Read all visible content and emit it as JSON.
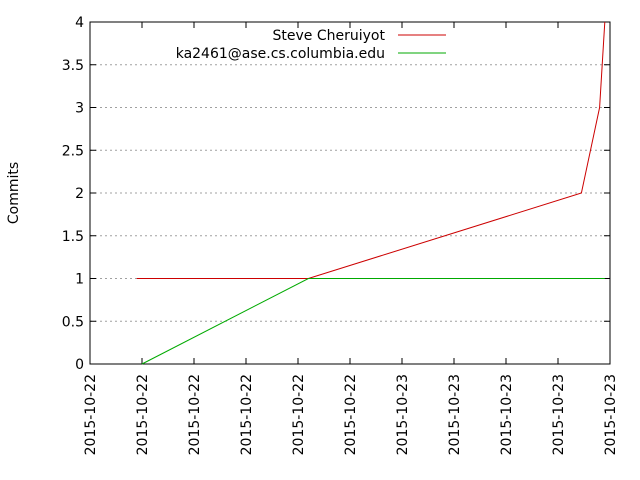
{
  "chart_data": {
    "type": "line",
    "title": "",
    "xlabel": "",
    "ylabel": "Commits",
    "ylim": [
      0,
      4
    ],
    "y_ticks": [
      {
        "value": 0,
        "label": "0"
      },
      {
        "value": 0.5,
        "label": "0.5"
      },
      {
        "value": 1,
        "label": "1"
      },
      {
        "value": 1.5,
        "label": "1.5"
      },
      {
        "value": 2,
        "label": "2"
      },
      {
        "value": 2.5,
        "label": "2.5"
      },
      {
        "value": 3,
        "label": "3"
      },
      {
        "value": 3.5,
        "label": "3.5"
      },
      {
        "value": 4,
        "label": "4"
      }
    ],
    "x_ticks": [
      "2015-10-22",
      "2015-10-22",
      "2015-10-22",
      "2015-10-22",
      "2015-10-22",
      "2015-10-22",
      "2015-10-23",
      "2015-10-23",
      "2015-10-23",
      "2015-10-23",
      "2015-10-23"
    ],
    "xlim": [
      0,
      10
    ],
    "grid": true,
    "legend_position": "top-right",
    "series": [
      {
        "name": "Steve Cheruiyot",
        "color": "#cc0000",
        "x": [
          0.9,
          4.2,
          9.45,
          9.8,
          9.9
        ],
        "y": [
          1,
          1,
          2,
          3,
          4
        ]
      },
      {
        "name": "ka2461@ase.cs.columbia.edu",
        "color": "#00aa00",
        "x": [
          1.0,
          4.2,
          9.9
        ],
        "y": [
          0,
          1,
          1
        ]
      }
    ]
  }
}
